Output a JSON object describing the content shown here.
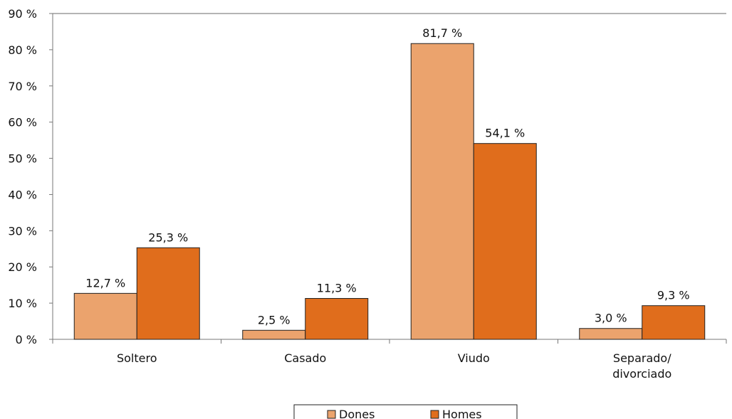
{
  "chart_data": {
    "type": "bar",
    "categories": [
      "Soltero",
      "Casado",
      "Viudo",
      "Separado/ divorciado"
    ],
    "category_lines": [
      [
        "Soltero"
      ],
      [
        "Casado"
      ],
      [
        "Viudo"
      ],
      [
        "Separado/",
        "divorciado"
      ]
    ],
    "series": [
      {
        "name": "Dones",
        "values": [
          12.7,
          2.5,
          81.7,
          3.0
        ],
        "labels": [
          "12,7 %",
          "2,5 %",
          "81,7 %",
          "3,0 %"
        ],
        "color": "#eba36d"
      },
      {
        "name": "Homes",
        "values": [
          25.3,
          11.3,
          54.1,
          9.3
        ],
        "labels": [
          "25,3 %",
          "11,3 %",
          "54,1 %",
          "9,3 %"
        ],
        "color": "#e06d1c"
      }
    ],
    "ylim": [
      0,
      90
    ],
    "yticks": [
      0,
      10,
      20,
      30,
      40,
      50,
      60,
      70,
      80,
      90
    ],
    "ytick_labels": [
      "0 %",
      "10 %",
      "20 %",
      "30 %",
      "40 %",
      "50 %",
      "60 %",
      "70 %",
      "80 %",
      "90 %"
    ],
    "grid": false,
    "legend_position": "bottom-center"
  }
}
